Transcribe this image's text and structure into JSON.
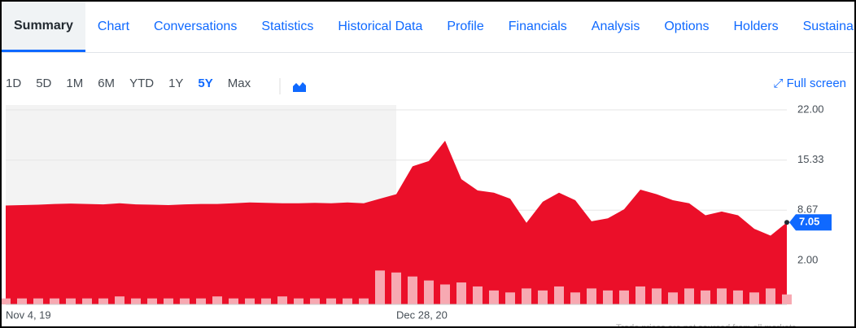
{
  "tabs": [
    "Summary",
    "Chart",
    "Conversations",
    "Statistics",
    "Historical Data",
    "Profile",
    "Financials",
    "Analysis",
    "Options",
    "Holders",
    "Sustainability"
  ],
  "ranges": [
    "1D",
    "5D",
    "1M",
    "6M",
    "YTD",
    "1Y",
    "5Y",
    "Max"
  ],
  "full_screen": "Full screen",
  "footnote": "Trade prices are not sourced from all markets",
  "chart_data": {
    "type": "area",
    "categories": [
      "Nov 4, 19",
      null,
      null,
      null,
      null,
      null,
      null,
      null,
      null,
      null,
      null,
      null,
      null,
      null,
      null,
      null,
      null,
      null,
      null,
      null,
      null,
      null,
      null,
      null,
      "Dec 28, 20",
      null,
      null,
      null,
      null,
      null,
      null,
      null,
      null,
      null,
      null,
      null,
      null,
      null,
      null,
      null,
      null,
      null,
      null,
      null,
      null,
      null,
      null,
      null,
      null
    ],
    "series": [
      {
        "color": "#eb0f29",
        "values": [
          9.3,
          9.35,
          9.4,
          9.5,
          9.55,
          9.5,
          9.45,
          9.6,
          9.45,
          9.4,
          9.35,
          9.45,
          9.5,
          9.5,
          9.6,
          9.7,
          9.65,
          9.6,
          9.6,
          9.65,
          9.6,
          9.7,
          9.6,
          10.2,
          10.8,
          14.5,
          15.2,
          17.9,
          12.8,
          11.3,
          11.0,
          10.2,
          7.0,
          9.8,
          11.0,
          10.0,
          7.2,
          7.6,
          8.8,
          11.4,
          10.8,
          10.0,
          9.6,
          8.0,
          8.5,
          8.0,
          6.2,
          5.3,
          7.05
        ]
      },
      {
        "color": "#f7a9b2",
        "axis": "y2",
        "values": [
          3,
          3,
          3,
          3,
          3,
          3,
          3,
          4,
          3,
          3,
          3,
          3,
          3,
          4,
          3,
          3,
          3,
          4,
          3,
          3,
          3,
          3,
          3,
          17,
          16,
          14,
          12,
          10,
          11,
          9,
          7,
          6,
          8,
          7,
          9,
          6,
          8,
          7,
          7,
          9,
          8,
          6,
          8,
          7,
          8,
          7,
          6,
          8,
          5
        ]
      }
    ],
    "ylim": [
      -3.84,
      22.65
    ],
    "yticks": [
      {
        "value": 2,
        "label": "2.00"
      },
      {
        "value": 8.67,
        "label": "8.67"
      },
      {
        "value": 15.33,
        "label": "15.33"
      },
      {
        "value": 22,
        "label": "22.00"
      }
    ],
    "y2lim": [
      0,
      100
    ],
    "grid": true
  }
}
